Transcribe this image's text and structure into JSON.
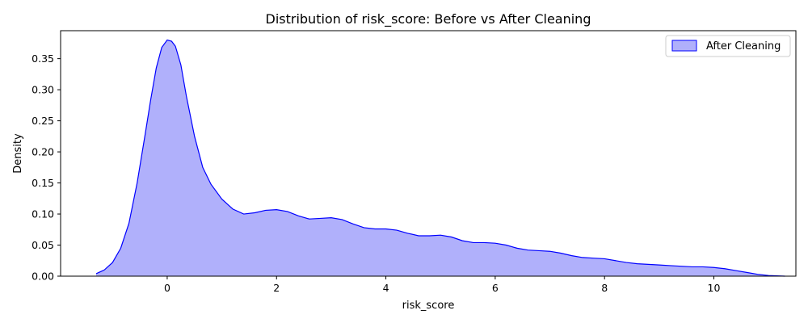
{
  "chart_data": {
    "type": "area",
    "title": "Distribution of risk_score: Before vs After Cleaning",
    "xlabel": "risk_score",
    "ylabel": "Density",
    "xlim": [
      -1.95,
      11.5
    ],
    "ylim": [
      0,
      0.395
    ],
    "xticks": [
      0,
      2,
      4,
      6,
      8,
      10
    ],
    "xtick_labels": [
      "0",
      "2",
      "4",
      "6",
      "8",
      "10"
    ],
    "yticks": [
      0,
      0.05,
      0.1,
      0.15,
      0.2,
      0.25,
      0.3,
      0.35
    ],
    "ytick_labels": [
      "0.00",
      "0.05",
      "0.10",
      "0.15",
      "0.20",
      "0.25",
      "0.30",
      "0.35"
    ],
    "grid": false,
    "legend_position": "top-right",
    "series": [
      {
        "name": "After Cleaning",
        "color": "#0000ff",
        "fill_color": "#b0b0fb",
        "x": [
          -1.3,
          -1.15,
          -1.0,
          -0.85,
          -0.7,
          -0.55,
          -0.4,
          -0.3,
          -0.2,
          -0.1,
          0.0,
          0.08,
          0.15,
          0.25,
          0.35,
          0.5,
          0.65,
          0.8,
          1.0,
          1.2,
          1.4,
          1.6,
          1.8,
          2.0,
          2.2,
          2.4,
          2.6,
          2.8,
          3.0,
          3.2,
          3.4,
          3.6,
          3.8,
          4.0,
          4.2,
          4.4,
          4.6,
          4.8,
          5.0,
          5.2,
          5.4,
          5.6,
          5.8,
          6.0,
          6.2,
          6.4,
          6.6,
          6.8,
          7.0,
          7.2,
          7.4,
          7.6,
          7.8,
          8.0,
          8.2,
          8.4,
          8.6,
          8.8,
          9.0,
          9.2,
          9.4,
          9.6,
          9.8,
          10.0,
          10.2,
          10.4,
          10.6,
          10.8,
          11.0,
          11.3
        ],
        "y": [
          0.004,
          0.01,
          0.022,
          0.045,
          0.085,
          0.15,
          0.23,
          0.285,
          0.335,
          0.368,
          0.38,
          0.378,
          0.37,
          0.34,
          0.29,
          0.225,
          0.175,
          0.148,
          0.124,
          0.108,
          0.1,
          0.102,
          0.106,
          0.107,
          0.104,
          0.097,
          0.092,
          0.093,
          0.094,
          0.091,
          0.084,
          0.078,
          0.076,
          0.076,
          0.074,
          0.069,
          0.065,
          0.065,
          0.066,
          0.063,
          0.057,
          0.054,
          0.054,
          0.053,
          0.05,
          0.045,
          0.042,
          0.041,
          0.04,
          0.037,
          0.033,
          0.03,
          0.029,
          0.028,
          0.025,
          0.022,
          0.02,
          0.019,
          0.018,
          0.017,
          0.016,
          0.015,
          0.015,
          0.014,
          0.012,
          0.009,
          0.006,
          0.003,
          0.001,
          0.0
        ]
      }
    ]
  }
}
